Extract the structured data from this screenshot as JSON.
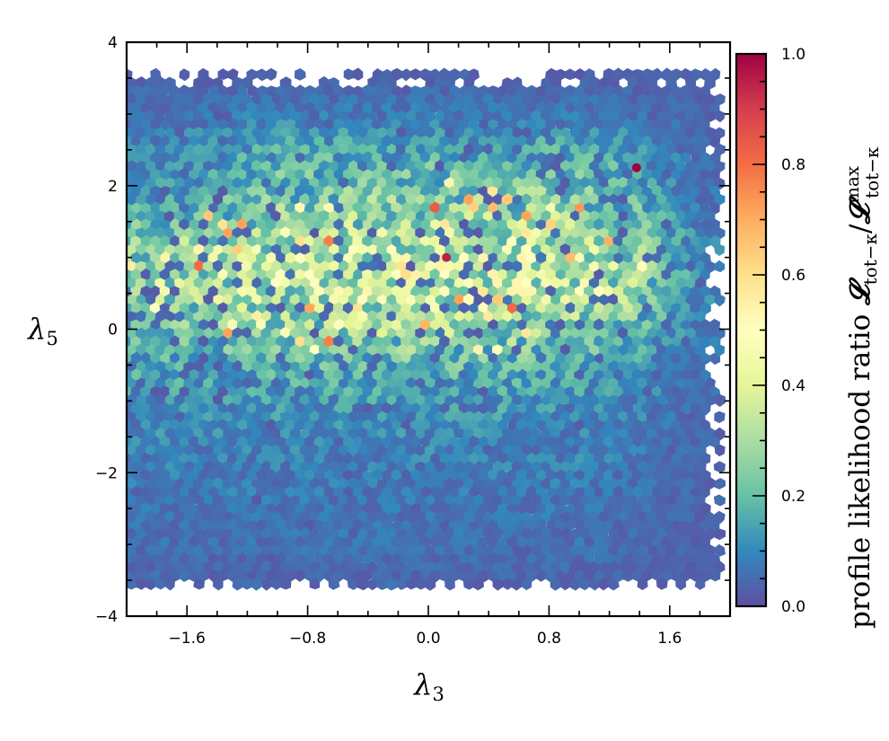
{
  "chart_data": {
    "type": "heatmap",
    "subtype": "hexbin",
    "xlabel": "λ3",
    "ylabel": "λ5",
    "xlim": [
      -2.0,
      2.0
    ],
    "ylim": [
      -4,
      4
    ],
    "xticks": [
      -1.6,
      -0.8,
      0.0,
      0.8,
      1.6
    ],
    "xtick_labels": [
      "−1.6",
      "−0.8",
      "0.0",
      "0.8",
      "1.6"
    ],
    "yticks": [
      -4,
      -2,
      0,
      2,
      4
    ],
    "ytick_labels": [
      "−4",
      "−2",
      "0",
      "2",
      "4"
    ],
    "grid": false,
    "colorbar": {
      "label": "profile likelihood ratio 𝓛tot−κ/𝓛maxtot−κ",
      "label_main": "profile likelihood ratio ",
      "label_math": "𝓛",
      "label_sub1": "tot−κ",
      "label_sup2": "max",
      "label_sub2": "tot−κ",
      "range": [
        0.0,
        1.0
      ],
      "ticks": [
        0.0,
        0.2,
        0.4,
        0.6,
        0.8,
        1.0
      ],
      "tick_labels": [
        "0.0",
        "0.2",
        "0.4",
        "0.6",
        "0.8",
        "1.0"
      ],
      "colormap": "Spectral_r",
      "colors": [
        "#5e4fa2",
        "#3288bd",
        "#66c2a5",
        "#abdda4",
        "#e6f598",
        "#ffffbf",
        "#fee08b",
        "#fdae61",
        "#f46d43",
        "#d53e4f",
        "#9e0142"
      ]
    },
    "data_extent": {
      "x": [
        -2.0,
        1.96
      ],
      "y": [
        -3.6,
        3.55
      ]
    },
    "grid_x": [
      -1.8,
      -1.4,
      -1.0,
      -0.6,
      -0.2,
      0.2,
      0.6,
      1.0,
      1.4,
      1.8
    ],
    "grid_y": [
      3.5,
      3.0,
      2.5,
      2.0,
      1.5,
      1.0,
      0.5,
      0.0,
      -0.5,
      -1.0,
      -1.5,
      -2.0,
      -2.5,
      -3.0,
      -3.5
    ],
    "mean_values": [
      [
        0.03,
        0.03,
        0.03,
        0.03,
        0.03,
        0.03,
        0.03,
        0.03,
        0.03,
        0.03
      ],
      [
        0.06,
        0.07,
        0.08,
        0.08,
        0.08,
        0.08,
        0.08,
        0.08,
        0.06,
        0.04
      ],
      [
        0.1,
        0.12,
        0.15,
        0.15,
        0.14,
        0.14,
        0.15,
        0.16,
        0.12,
        0.05
      ],
      [
        0.12,
        0.15,
        0.2,
        0.2,
        0.22,
        0.22,
        0.22,
        0.2,
        0.15,
        0.06
      ],
      [
        0.18,
        0.22,
        0.25,
        0.27,
        0.28,
        0.28,
        0.28,
        0.27,
        0.2,
        0.08
      ],
      [
        0.28,
        0.32,
        0.33,
        0.35,
        0.35,
        0.35,
        0.35,
        0.33,
        0.25,
        0.1
      ],
      [
        0.3,
        0.32,
        0.33,
        0.35,
        0.38,
        0.36,
        0.36,
        0.33,
        0.25,
        0.1
      ],
      [
        0.2,
        0.22,
        0.24,
        0.26,
        0.28,
        0.27,
        0.26,
        0.23,
        0.18,
        0.08
      ],
      [
        0.15,
        0.16,
        0.17,
        0.18,
        0.18,
        0.18,
        0.17,
        0.16,
        0.12,
        0.06
      ],
      [
        0.12,
        0.12,
        0.13,
        0.13,
        0.13,
        0.13,
        0.13,
        0.12,
        0.1,
        0.05
      ],
      [
        0.1,
        0.1,
        0.1,
        0.1,
        0.1,
        0.1,
        0.1,
        0.1,
        0.08,
        0.04
      ],
      [
        0.08,
        0.08,
        0.08,
        0.08,
        0.08,
        0.08,
        0.08,
        0.08,
        0.07,
        0.04
      ],
      [
        0.07,
        0.07,
        0.07,
        0.07,
        0.07,
        0.07,
        0.07,
        0.07,
        0.06,
        0.04
      ],
      [
        0.06,
        0.06,
        0.06,
        0.06,
        0.06,
        0.06,
        0.06,
        0.06,
        0.05,
        0.03
      ],
      [
        0.04,
        0.04,
        0.04,
        0.04,
        0.04,
        0.04,
        0.04,
        0.04,
        0.04,
        0.03
      ]
    ],
    "peak_points": [
      {
        "x": 1.38,
        "y": 2.25,
        "value": 1.0
      },
      {
        "x": 0.12,
        "y": 1.0,
        "value": 0.95
      }
    ]
  }
}
